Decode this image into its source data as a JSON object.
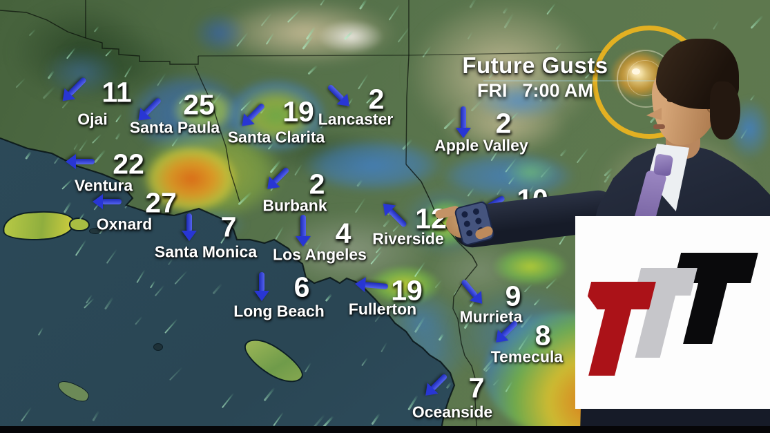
{
  "broadcast": {
    "title": "Future Gusts",
    "day": "FRI",
    "time": "7:00 AM"
  },
  "map": {
    "type": "wind-gust-forecast-map",
    "region": "Southern California",
    "cities": [
      {
        "name": "Ojai",
        "gust": "11",
        "dir": "SW",
        "num": [
          169,
          134
        ],
        "label": [
          134,
          173
        ],
        "arrow": [
          107,
          130
        ],
        "deg": 135,
        "len": 46
      },
      {
        "name": "Santa Paula",
        "gust": "25",
        "dir": "SW",
        "num": [
          288,
          152
        ],
        "label": [
          253,
          185
        ],
        "arrow": [
          216,
          159
        ],
        "deg": 135,
        "len": 44
      },
      {
        "name": "Santa Clarita",
        "gust": "19",
        "dir": "SW",
        "num": [
          432,
          162
        ],
        "label": [
          400,
          199
        ],
        "arrow": [
          366,
          167
        ],
        "deg": 135,
        "len": 44
      },
      {
        "name": "Lancaster",
        "gust": "2",
        "dir": "SE",
        "num": [
          545,
          144
        ],
        "label": [
          515,
          173
        ],
        "arrow": [
          491,
          139
        ],
        "deg": 45,
        "len": 42
      },
      {
        "name": "Apple Valley",
        "gust": "2",
        "dir": "S",
        "num": [
          729,
          179
        ],
        "label": [
          697,
          211
        ],
        "arrow": [
          671,
          177
        ],
        "deg": 90,
        "len": 46
      },
      {
        "name": "Ventura",
        "gust": "22",
        "dir": "W",
        "num": [
          186,
          238
        ],
        "label": [
          150,
          269
        ],
        "arrow": [
          116,
          234
        ],
        "deg": 180,
        "len": 42
      },
      {
        "name": "Oxnard",
        "gust": "27",
        "dir": "W",
        "num": [
          233,
          294
        ],
        "label": [
          180,
          325
        ],
        "arrow": [
          155,
          292
        ],
        "deg": 180,
        "len": 42
      },
      {
        "name": "Santa Monica",
        "gust": "7",
        "dir": "S",
        "num": [
          331,
          329
        ],
        "label": [
          298,
          365
        ],
        "arrow": [
          274,
          329
        ],
        "deg": 90,
        "len": 40
      },
      {
        "name": "Burbank",
        "gust": "2",
        "dir": "SW",
        "num": [
          459,
          267
        ],
        "label": [
          427,
          298
        ],
        "arrow": [
          402,
          259
        ],
        "deg": 135,
        "len": 42
      },
      {
        "name": "Los Angeles",
        "gust": "4",
        "dir": "S",
        "num": [
          497,
          338
        ],
        "label": [
          463,
          369
        ],
        "arrow": [
          439,
          334
        ],
        "deg": 90,
        "len": 46
      },
      {
        "name": "Riverside",
        "gust": "12",
        "dir": "NW",
        "num": [
          624,
          317
        ],
        "label": [
          591,
          346
        ],
        "arrow": [
          571,
          311
        ],
        "deg": -135,
        "len": 46
      },
      {
        "name": "",
        "gust": "10",
        "dir": "SW",
        "num": [
          771,
          289
        ],
        "label": null,
        "arrow": [
          711,
          297
        ],
        "deg": 150,
        "len": 44
      },
      {
        "name": "Long Beach",
        "gust": "6",
        "dir": "S",
        "num": [
          437,
          416
        ],
        "label": [
          404,
          451
        ],
        "arrow": [
          379,
          415
        ],
        "deg": 90,
        "len": 42
      },
      {
        "name": "Fullerton",
        "gust": "19",
        "dir": "W",
        "num": [
          589,
          421
        ],
        "label": [
          554,
          448
        ],
        "arrow": [
          538,
          413
        ],
        "deg": 185,
        "len": 48
      },
      {
        "name": "Murrieta",
        "gust": "9",
        "dir": "SE",
        "num": [
          743,
          429
        ],
        "label": [
          711,
          459
        ],
        "arrow": [
          684,
          423
        ],
        "deg": 50,
        "len": 44
      },
      {
        "name": "Temecula",
        "gust": "8",
        "dir": "SW",
        "num": [
          786,
          486
        ],
        "label": [
          763,
          517
        ],
        "arrow": [
          733,
          481
        ],
        "deg": 135,
        "len": 42
      },
      {
        "name": "Oceanside",
        "gust": "7",
        "dir": "SW",
        "num": [
          690,
          562
        ],
        "label": [
          655,
          597
        ],
        "arrow": [
          631,
          558
        ],
        "deg": 135,
        "len": 42
      }
    ]
  },
  "logo": {
    "letters": [
      "T",
      "T",
      "T"
    ],
    "colors": [
      "#ab1218",
      "#c6c6ca",
      "#0a0a0c"
    ]
  },
  "colors": {
    "arrow_blue": "#2836d4",
    "ocean": "#2c4a59",
    "sun_ring": "#eeb51e",
    "title_text": "#ffffff"
  }
}
